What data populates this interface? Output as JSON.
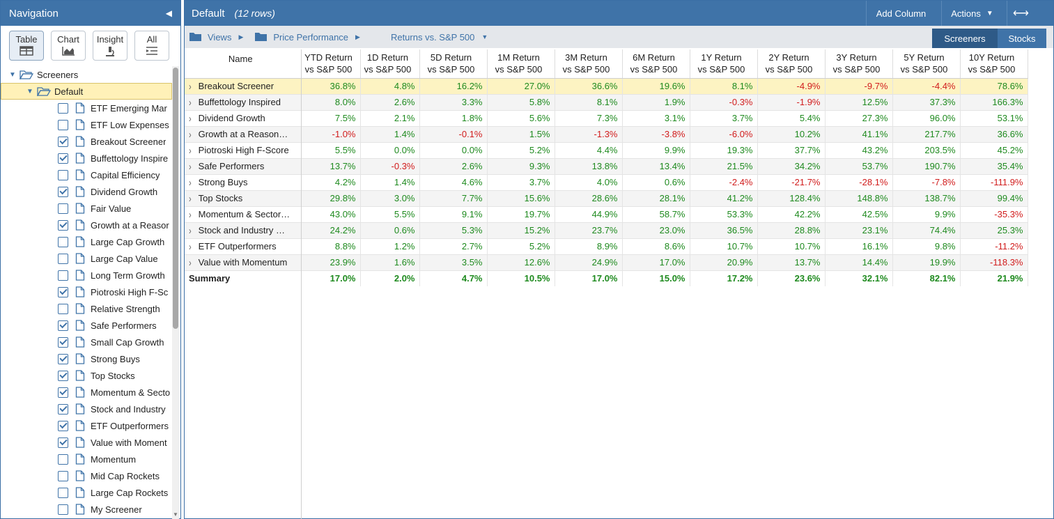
{
  "nav": {
    "title": "Navigation",
    "view_buttons": [
      {
        "label": "Table",
        "icon": "table-icon",
        "active": true
      },
      {
        "label": "Chart",
        "icon": "area-chart-icon",
        "active": false
      },
      {
        "label": "Insight",
        "icon": "microscope-icon",
        "active": false
      },
      {
        "label": "All",
        "icon": "list-icon",
        "active": false
      }
    ],
    "root_label": "Screeners",
    "folder_label": "Default",
    "items": [
      {
        "label": "ETF Emerging Mar",
        "checked": false
      },
      {
        "label": "ETF Low Expenses",
        "checked": false
      },
      {
        "label": "Breakout Screener",
        "checked": true
      },
      {
        "label": "Buffettology Inspire",
        "checked": true
      },
      {
        "label": "Capital Efficiency",
        "checked": false
      },
      {
        "label": "Dividend Growth",
        "checked": true
      },
      {
        "label": "Fair Value",
        "checked": false
      },
      {
        "label": "Growth at a Reasor",
        "checked": true
      },
      {
        "label": "Large Cap Growth",
        "checked": false
      },
      {
        "label": "Large Cap Value",
        "checked": false
      },
      {
        "label": "Long Term Growth",
        "checked": false
      },
      {
        "label": "Piotroski High F-Sc",
        "checked": true
      },
      {
        "label": "Relative Strength",
        "checked": false
      },
      {
        "label": "Safe Performers",
        "checked": true
      },
      {
        "label": "Small Cap Growth",
        "checked": true
      },
      {
        "label": "Strong Buys",
        "checked": true
      },
      {
        "label": "Top Stocks",
        "checked": true
      },
      {
        "label": "Momentum & Secto",
        "checked": true
      },
      {
        "label": "Stock and Industry",
        "checked": true
      },
      {
        "label": "ETF Outperformers",
        "checked": true
      },
      {
        "label": "Value with Moment",
        "checked": true
      },
      {
        "label": "Momentum",
        "checked": false
      },
      {
        "label": "Mid Cap Rockets",
        "checked": false
      },
      {
        "label": "Large Cap Rockets",
        "checked": false
      },
      {
        "label": "My Screener",
        "checked": false
      }
    ]
  },
  "main": {
    "title": "Default",
    "row_count": "(12 rows)",
    "add_column": "Add Column",
    "actions": "Actions",
    "breadcrumbs": [
      "Views",
      "Price Performance",
      "Returns vs. S&P 500"
    ],
    "segments": [
      "Screeners",
      "Stocks"
    ]
  },
  "table": {
    "name_header": "Name",
    "columns": [
      [
        "YTD Return",
        "vs S&P 500"
      ],
      [
        "1D Return",
        "vs S&P 500"
      ],
      [
        "5D Return",
        "vs S&P 500"
      ],
      [
        "1M Return",
        "vs S&P 500"
      ],
      [
        "3M Return",
        "vs S&P 500"
      ],
      [
        "6M Return",
        "vs S&P 500"
      ],
      [
        "1Y Return",
        "vs S&P 500"
      ],
      [
        "2Y Return",
        "vs S&P 500"
      ],
      [
        "3Y Return",
        "vs S&P 500"
      ],
      [
        "5Y Return",
        "vs S&P 500"
      ],
      [
        "10Y Return",
        "vs S&P 500"
      ]
    ],
    "rows": [
      {
        "name": "Breakout Screener",
        "values": [
          "36.8%",
          "4.8%",
          "16.2%",
          "27.0%",
          "36.6%",
          "19.6%",
          "8.1%",
          "-4.9%",
          "-9.7%",
          "-4.4%",
          "78.6%"
        ]
      },
      {
        "name": "Buffettology Inspired",
        "values": [
          "8.0%",
          "2.6%",
          "3.3%",
          "5.8%",
          "8.1%",
          "1.9%",
          "-0.3%",
          "-1.9%",
          "12.5%",
          "37.3%",
          "166.3%"
        ]
      },
      {
        "name": "Dividend Growth",
        "values": [
          "7.5%",
          "2.1%",
          "1.8%",
          "5.6%",
          "7.3%",
          "3.1%",
          "3.7%",
          "5.4%",
          "27.3%",
          "96.0%",
          "53.1%"
        ]
      },
      {
        "name": "Growth at a Reason…",
        "values": [
          "-1.0%",
          "1.4%",
          "-0.1%",
          "1.5%",
          "-1.3%",
          "-3.8%",
          "-6.0%",
          "10.2%",
          "41.1%",
          "217.7%",
          "36.6%"
        ]
      },
      {
        "name": "Piotroski High F-Score",
        "values": [
          "5.5%",
          "0.0%",
          "0.0%",
          "5.2%",
          "4.4%",
          "9.9%",
          "19.3%",
          "37.7%",
          "43.2%",
          "203.5%",
          "45.2%"
        ]
      },
      {
        "name": "Safe Performers",
        "values": [
          "13.7%",
          "-0.3%",
          "2.6%",
          "9.3%",
          "13.8%",
          "13.4%",
          "21.5%",
          "34.2%",
          "53.7%",
          "190.7%",
          "35.4%"
        ]
      },
      {
        "name": "Strong Buys",
        "values": [
          "4.2%",
          "1.4%",
          "4.6%",
          "3.7%",
          "4.0%",
          "0.6%",
          "-2.4%",
          "-21.7%",
          "-28.1%",
          "-7.8%",
          "-111.9%"
        ]
      },
      {
        "name": "Top Stocks",
        "values": [
          "29.8%",
          "3.0%",
          "7.7%",
          "15.6%",
          "28.6%",
          "28.1%",
          "41.2%",
          "128.4%",
          "148.8%",
          "138.7%",
          "99.4%"
        ]
      },
      {
        "name": "Momentum & Sector…",
        "values": [
          "43.0%",
          "5.5%",
          "9.1%",
          "19.7%",
          "44.9%",
          "58.7%",
          "53.3%",
          "42.2%",
          "42.5%",
          "9.9%",
          "-35.3%"
        ]
      },
      {
        "name": "Stock and Industry …",
        "values": [
          "24.2%",
          "0.6%",
          "5.3%",
          "15.2%",
          "23.7%",
          "23.0%",
          "36.5%",
          "28.8%",
          "23.1%",
          "74.4%",
          "25.3%"
        ]
      },
      {
        "name": "ETF Outperformers",
        "values": [
          "8.8%",
          "1.2%",
          "2.7%",
          "5.2%",
          "8.9%",
          "8.6%",
          "10.7%",
          "10.7%",
          "16.1%",
          "9.8%",
          "-11.2%"
        ]
      },
      {
        "name": "Value with Momentum",
        "values": [
          "23.9%",
          "1.6%",
          "3.5%",
          "12.6%",
          "24.9%",
          "17.0%",
          "20.9%",
          "13.7%",
          "14.4%",
          "19.9%",
          "-118.3%"
        ]
      }
    ],
    "summary": {
      "name": "Summary",
      "values": [
        "17.0%",
        "2.0%",
        "4.7%",
        "10.5%",
        "17.0%",
        "15.0%",
        "17.2%",
        "23.6%",
        "32.1%",
        "82.1%",
        "21.9%"
      ]
    }
  }
}
